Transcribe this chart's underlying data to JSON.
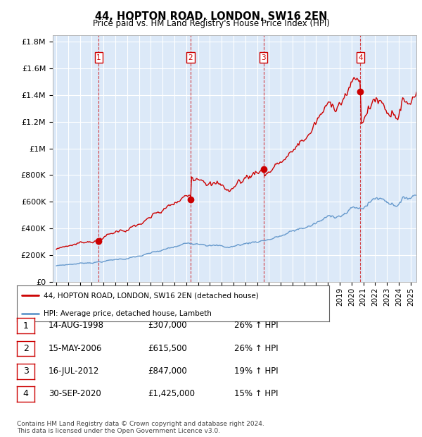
{
  "title": "44, HOPTON ROAD, LONDON, SW16 2EN",
  "subtitle": "Price paid vs. HM Land Registry's House Price Index (HPI)",
  "footer1": "Contains HM Land Registry data © Crown copyright and database right 2024.",
  "footer2": "This data is licensed under the Open Government Licence v3.0.",
  "legend_house": "44, HOPTON ROAD, LONDON, SW16 2EN (detached house)",
  "legend_hpi": "HPI: Average price, detached house, Lambeth",
  "transactions": [
    {
      "num": 1,
      "date": "14-AUG-1998",
      "price": "£307,000",
      "change": "26% ↑ HPI",
      "year": 1998.6
    },
    {
      "num": 2,
      "date": "15-MAY-2006",
      "price": "£615,500",
      "change": "26% ↑ HPI",
      "year": 2006.37
    },
    {
      "num": 3,
      "date": "16-JUL-2012",
      "price": "£847,000",
      "change": "19% ↑ HPI",
      "year": 2012.54
    },
    {
      "num": 4,
      "date": "30-SEP-2020",
      "price": "£1,425,000",
      "change": "15% ↑ HPI",
      "year": 2020.75
    }
  ],
  "sale_values": [
    307000,
    615500,
    847000,
    1425000
  ],
  "sale_years": [
    1998.62,
    2006.37,
    2012.54,
    2020.75
  ],
  "red_color": "#cc0000",
  "blue_color": "#6699cc",
  "plot_bg": "#dce9f8",
  "grid_color": "#ffffff",
  "ylim": [
    0,
    1850000
  ],
  "xlim_start": 1994.7,
  "xlim_end": 2025.5,
  "yticks": [
    0,
    200000,
    400000,
    600000,
    800000,
    1000000,
    1200000,
    1400000,
    1600000,
    1800000
  ],
  "ylabels": [
    "£0",
    "£200K",
    "£400K",
    "£600K",
    "£800K",
    "£1M",
    "£1.2M",
    "£1.4M",
    "£1.6M",
    "£1.8M"
  ]
}
